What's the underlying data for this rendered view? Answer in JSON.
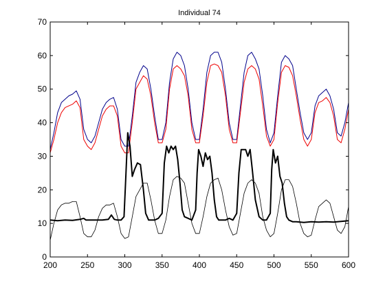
{
  "chart_data": {
    "type": "line",
    "title": "Individual 74",
    "xlabel": "",
    "ylabel": "",
    "xlim": [
      200,
      600
    ],
    "ylim": [
      0,
      70
    ],
    "xticks": [
      200,
      250,
      300,
      350,
      400,
      450,
      500,
      550,
      600
    ],
    "yticks": [
      0,
      10,
      20,
      30,
      40,
      50,
      60,
      70
    ],
    "grid": false,
    "legend": "none",
    "series": [
      {
        "color": "#00008b",
        "width": 1,
        "x": [
          200,
          205,
          210,
          215,
          220,
          225,
          230,
          235,
          240,
          245,
          250,
          255,
          260,
          265,
          270,
          275,
          280,
          285,
          290,
          295,
          300,
          305,
          310,
          315,
          320,
          325,
          330,
          335,
          340,
          345,
          350,
          355,
          360,
          365,
          370,
          375,
          380,
          385,
          390,
          395,
          400,
          405,
          410,
          415,
          420,
          425,
          430,
          435,
          440,
          445,
          450,
          455,
          460,
          465,
          470,
          475,
          480,
          485,
          490,
          495,
          500,
          505,
          510,
          515,
          520,
          525,
          530,
          535,
          540,
          545,
          550,
          555,
          560,
          565,
          570,
          575,
          580,
          585,
          590,
          595,
          600
        ],
        "values": [
          32,
          37,
          43,
          46,
          47,
          48,
          48.5,
          49.5,
          47,
          38,
          35,
          34,
          36,
          40,
          44,
          46,
          47,
          47.5,
          44,
          35,
          33,
          33,
          42,
          52,
          55,
          57,
          56,
          50,
          42,
          35,
          35,
          40,
          52,
          59,
          61,
          60,
          57,
          50,
          40,
          35,
          35,
          44,
          55,
          60,
          61,
          61,
          58,
          50,
          40,
          35,
          35,
          45,
          55,
          60,
          61,
          59,
          56,
          48,
          38,
          34,
          37,
          48,
          58,
          60,
          59,
          57,
          50,
          43,
          37,
          35,
          37,
          45,
          48,
          49,
          50,
          48,
          44,
          37,
          36,
          40,
          46
        ]
      },
      {
        "color": "#ee0000",
        "width": 1,
        "x": [
          200,
          205,
          210,
          215,
          220,
          225,
          230,
          235,
          240,
          245,
          250,
          255,
          260,
          265,
          270,
          275,
          280,
          285,
          290,
          295,
          300,
          305,
          310,
          315,
          320,
          325,
          330,
          335,
          340,
          345,
          350,
          355,
          360,
          365,
          370,
          375,
          380,
          385,
          390,
          395,
          400,
          405,
          410,
          415,
          420,
          425,
          430,
          435,
          440,
          445,
          450,
          455,
          460,
          465,
          470,
          475,
          480,
          485,
          490,
          495,
          500,
          505,
          510,
          515,
          520,
          525,
          530,
          535,
          540,
          545,
          550,
          555,
          560,
          565,
          570,
          575,
          580,
          585,
          590,
          595,
          600
        ],
        "values": [
          31,
          35,
          40,
          43,
          44.5,
          45,
          45.5,
          46.5,
          44.5,
          35,
          33,
          32,
          34,
          38,
          42,
          44,
          45,
          45,
          42,
          33,
          31,
          31,
          40,
          50,
          52,
          54,
          53,
          48,
          40,
          34,
          34,
          38,
          50,
          56,
          57,
          56,
          54,
          48,
          38,
          34,
          34,
          42,
          52,
          57,
          57.5,
          57,
          55,
          48,
          38,
          34,
          34,
          43,
          52,
          56,
          57,
          56,
          53,
          45,
          36,
          33,
          35,
          46,
          55,
          57,
          56.5,
          54,
          48,
          41,
          35,
          33,
          35,
          43,
          46,
          46.5,
          47.5,
          46,
          42,
          35,
          34,
          38,
          44
        ]
      },
      {
        "color": "#000000",
        "width": 2,
        "x": [
          200,
          210,
          220,
          230,
          240,
          245,
          248,
          252,
          260,
          270,
          278,
          282,
          286,
          290,
          295,
          299,
          301,
          304,
          307,
          310,
          313,
          317,
          321,
          325,
          328,
          332,
          336,
          340,
          345,
          350,
          353,
          356,
          359,
          362,
          365,
          368,
          371,
          374,
          377,
          380,
          385,
          390,
          395,
          397,
          399,
          402,
          405,
          408,
          411,
          414,
          417,
          420,
          423,
          426,
          430,
          435,
          440,
          445,
          450,
          453,
          456,
          459,
          462,
          465,
          468,
          471,
          475,
          480,
          485,
          490,
          495,
          497,
          499,
          502,
          505,
          508,
          511,
          514,
          517,
          520,
          525,
          530,
          540,
          550,
          560,
          570,
          580,
          590,
          600
        ],
        "values": [
          11,
          10.8,
          11,
          10.9,
          11.2,
          11.5,
          11,
          11,
          11,
          11,
          11.2,
          12.5,
          11.2,
          11,
          11,
          12,
          22,
          37,
          33,
          24,
          26,
          28,
          27.5,
          20,
          13,
          11,
          11,
          11,
          11.5,
          13,
          28,
          33,
          31,
          33,
          32,
          33,
          29,
          22,
          14,
          12,
          11.5,
          11,
          14,
          25,
          32,
          30,
          27,
          31,
          29,
          30,
          25,
          17,
          12,
          11,
          11,
          11,
          11.5,
          11,
          13,
          25,
          32,
          32,
          32,
          30,
          32,
          26,
          17,
          12,
          11,
          11,
          13,
          26,
          32,
          28,
          30,
          24,
          22,
          16,
          12,
          11,
          10.5,
          10.5,
          10.3,
          10.5,
          10.4,
          10.5,
          10.4,
          10.6,
          10.8
        ]
      },
      {
        "color": "#000000",
        "width": 0.8,
        "x": [
          200,
          205,
          210,
          215,
          220,
          225,
          230,
          235,
          240,
          245,
          250,
          255,
          260,
          265,
          270,
          275,
          280,
          285,
          290,
          295,
          300,
          305,
          310,
          315,
          320,
          325,
          330,
          335,
          340,
          345,
          350,
          355,
          360,
          365,
          370,
          375,
          380,
          385,
          390,
          395,
          400,
          405,
          410,
          415,
          420,
          425,
          430,
          435,
          440,
          445,
          450,
          455,
          460,
          465,
          470,
          475,
          480,
          485,
          490,
          495,
          500,
          505,
          510,
          515,
          520,
          525,
          530,
          535,
          540,
          545,
          550,
          555,
          560,
          565,
          570,
          575,
          580,
          585,
          590,
          595,
          600
        ],
        "values": [
          5,
          10,
          14,
          15.5,
          16,
          16,
          16.5,
          16.5,
          12,
          7,
          6,
          6,
          8,
          12,
          14.5,
          15.5,
          15.5,
          16,
          12,
          7,
          5.5,
          6,
          12,
          18,
          20,
          22,
          22,
          17,
          11,
          7,
          7,
          11,
          18,
          23,
          24,
          23.5,
          22,
          16,
          10,
          7,
          7,
          12,
          18,
          22,
          23,
          23.5,
          20,
          14,
          9,
          6.5,
          7,
          13,
          19,
          22,
          23,
          22,
          19,
          12,
          8,
          6,
          7,
          13,
          20,
          23,
          23,
          21,
          16,
          10,
          7,
          6,
          6.5,
          11,
          15,
          16,
          17,
          16,
          12,
          8,
          7,
          9,
          15
        ]
      }
    ]
  }
}
